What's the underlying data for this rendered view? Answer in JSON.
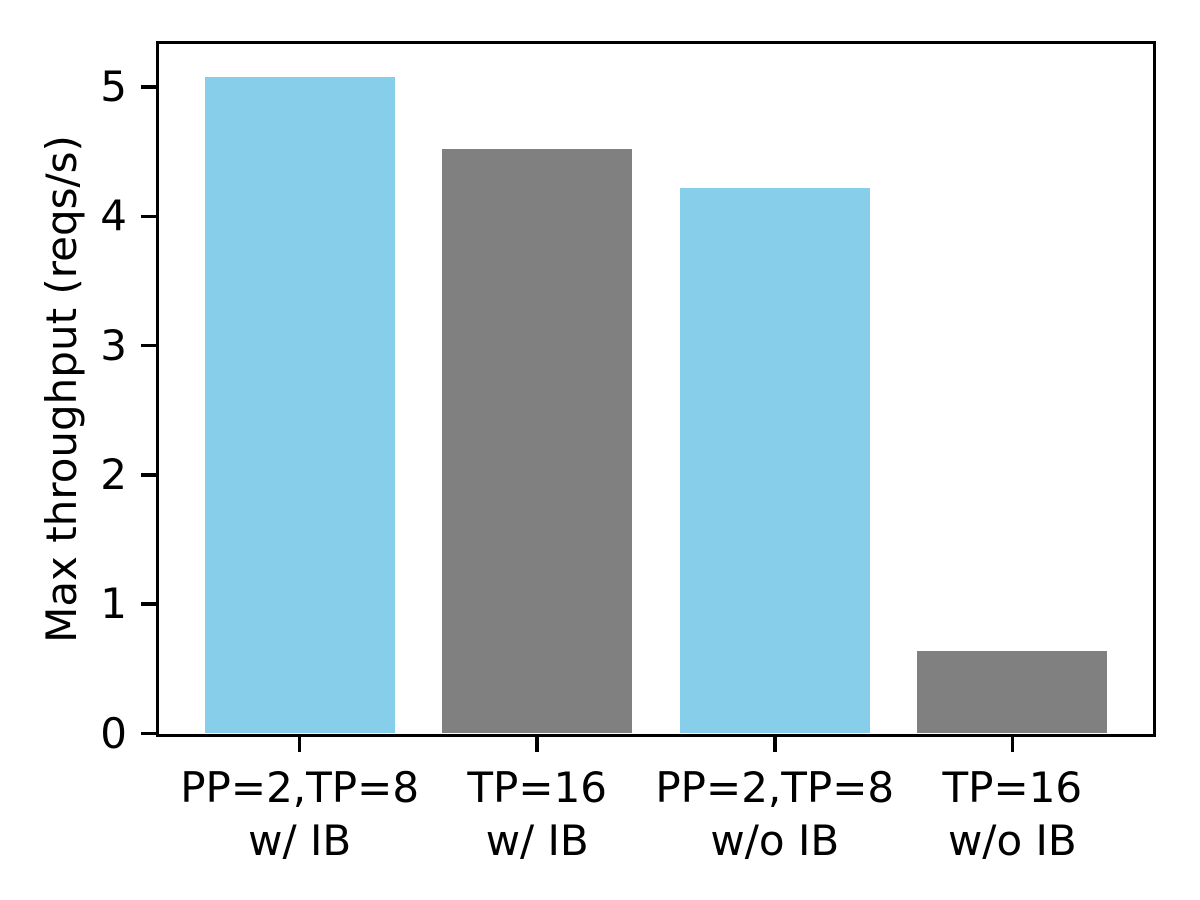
{
  "chart_data": {
    "type": "bar",
    "title": "",
    "xlabel": "",
    "ylabel": "Max throughput (reqs/s)",
    "categories": [
      "PP=2,TP=8\nw/ IB",
      "TP=16\nw/ IB",
      "PP=2,TP=8\nw/o IB",
      "TP=16\nw/o IB"
    ],
    "values": [
      5.08,
      4.52,
      4.22,
      0.64
    ],
    "bar_colors": [
      "#87CEEB",
      "#808080",
      "#87CEEB",
      "#808080"
    ],
    "yticks": [
      0,
      1,
      2,
      3,
      4,
      5
    ],
    "ylim": [
      0,
      5.33
    ],
    "xlim": [
      -0.59,
      3.59
    ],
    "bar_width": 0.8,
    "grid": false,
    "legend_position": "none",
    "axis_color": "#000000",
    "background_color": "#ffffff"
  }
}
